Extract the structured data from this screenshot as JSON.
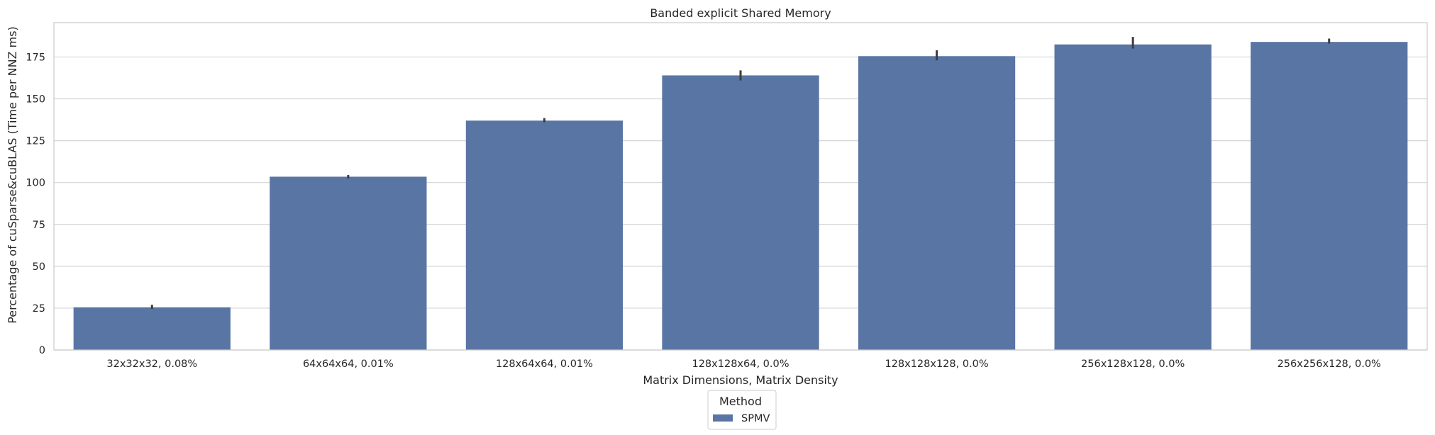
{
  "chart_data": {
    "type": "bar",
    "title": "Banded explicit Shared Memory",
    "xlabel": "Matrix Dimensions, Matrix Density",
    "ylabel": "Percentage of cuSparse&cuBLAS (Time per NNZ ms)",
    "categories": [
      "32x32x32, 0.08%",
      "64x64x64, 0.01%",
      "128x64x64, 0.01%",
      "128x128x64, 0.0%",
      "128x128x128, 0.0%",
      "256x128x128, 0.0%",
      "256x256x128, 0.0%"
    ],
    "series": [
      {
        "name": "SPMV",
        "values": [
          25.5,
          103.5,
          137,
          164,
          175.5,
          182.5,
          184
        ],
        "error_low": [
          24.5,
          102.5,
          136,
          161,
          173,
          180,
          183
        ],
        "error_high": [
          27,
          104.5,
          138.5,
          167,
          179,
          187,
          186
        ],
        "color": "#5975a4"
      }
    ],
    "yticks": [
      0,
      25,
      50,
      75,
      100,
      125,
      150,
      175
    ],
    "ylim": [
      0,
      195.5
    ],
    "grid": "horizontal",
    "legend": {
      "title": "Method",
      "position": "bottom-center"
    }
  }
}
